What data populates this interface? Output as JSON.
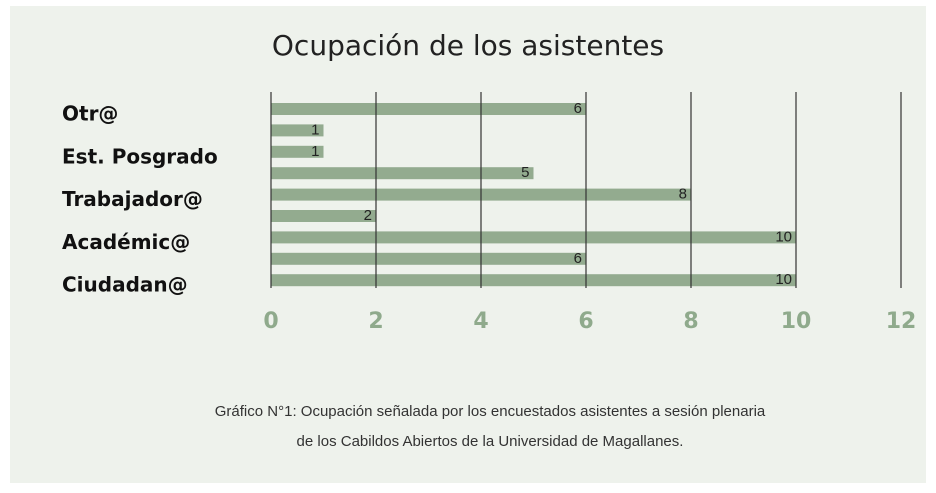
{
  "chart_data": {
    "type": "bar",
    "orientation": "horizontal",
    "title": "Ocupación de los asistentes",
    "categories": [
      "Otr@",
      null,
      "Est. Posgrado",
      null,
      "Trabajador@",
      null,
      "Académic@",
      null,
      "Ciudadan@"
    ],
    "values": [
      6,
      1,
      1,
      5,
      8,
      2,
      10,
      6,
      10
    ],
    "color": "#93ab8f",
    "xlim": [
      0,
      12
    ],
    "xticks": [
      0,
      2,
      4,
      6,
      8,
      10,
      12
    ],
    "grid": true,
    "caption": [
      "Gráfico N°1: Ocupación señalada por los encuestados asistentes a sesión plenaria",
      "de los Cabildos Abiertos de la Universidad de Magallanes."
    ]
  }
}
